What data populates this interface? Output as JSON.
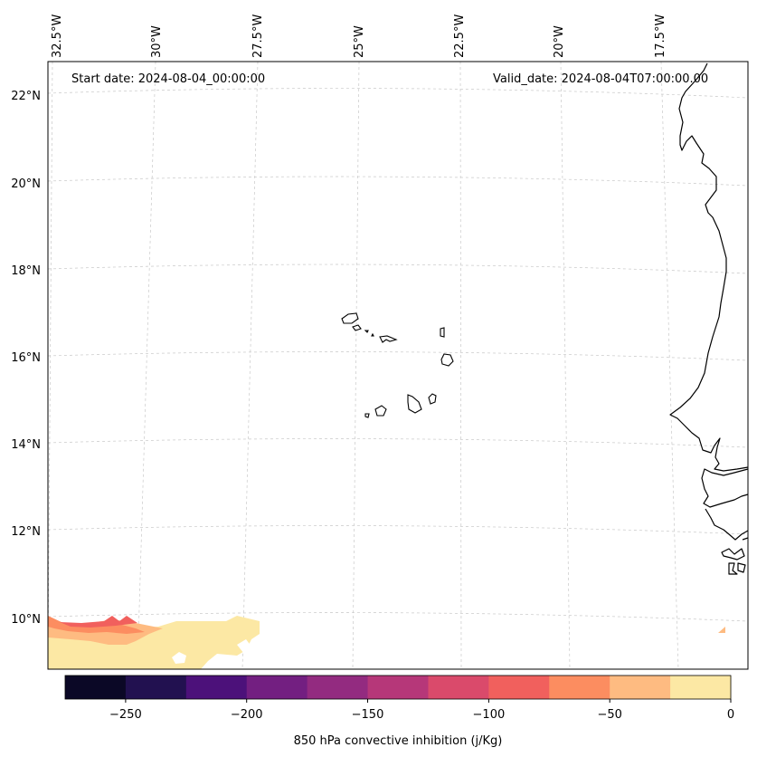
{
  "map": {
    "start_label": "Start date: 2024-08-04_00:00:00",
    "valid_label": "Valid_date: 2024-08-04T07:00:00.00",
    "lon_labels": [
      "32.5°W",
      "30°W",
      "27.5°W",
      "25°W",
      "22.5°W",
      "20°W",
      "17.5°W"
    ],
    "lat_labels": [
      "22°N",
      "20°N",
      "18°N",
      "16°N",
      "14°N",
      "12°N",
      "10°N"
    ],
    "variable": "850 hPa convective inhibition",
    "region": "Cabo Verde islands and West African coast"
  },
  "colorbar": {
    "label": "850 hPa convective inhibition (j/Kg)",
    "ticks": [
      "−250",
      "−200",
      "−150",
      "−100",
      "−50",
      "0"
    ],
    "range": [
      -275,
      0
    ],
    "colors": [
      "#0b0826",
      "#221150",
      "#4c117a",
      "#731f81",
      "#932b80",
      "#b63779",
      "#da4a6b",
      "#f1605d",
      "#fc8d60",
      "#febb81",
      "#fce8a4"
    ]
  }
}
